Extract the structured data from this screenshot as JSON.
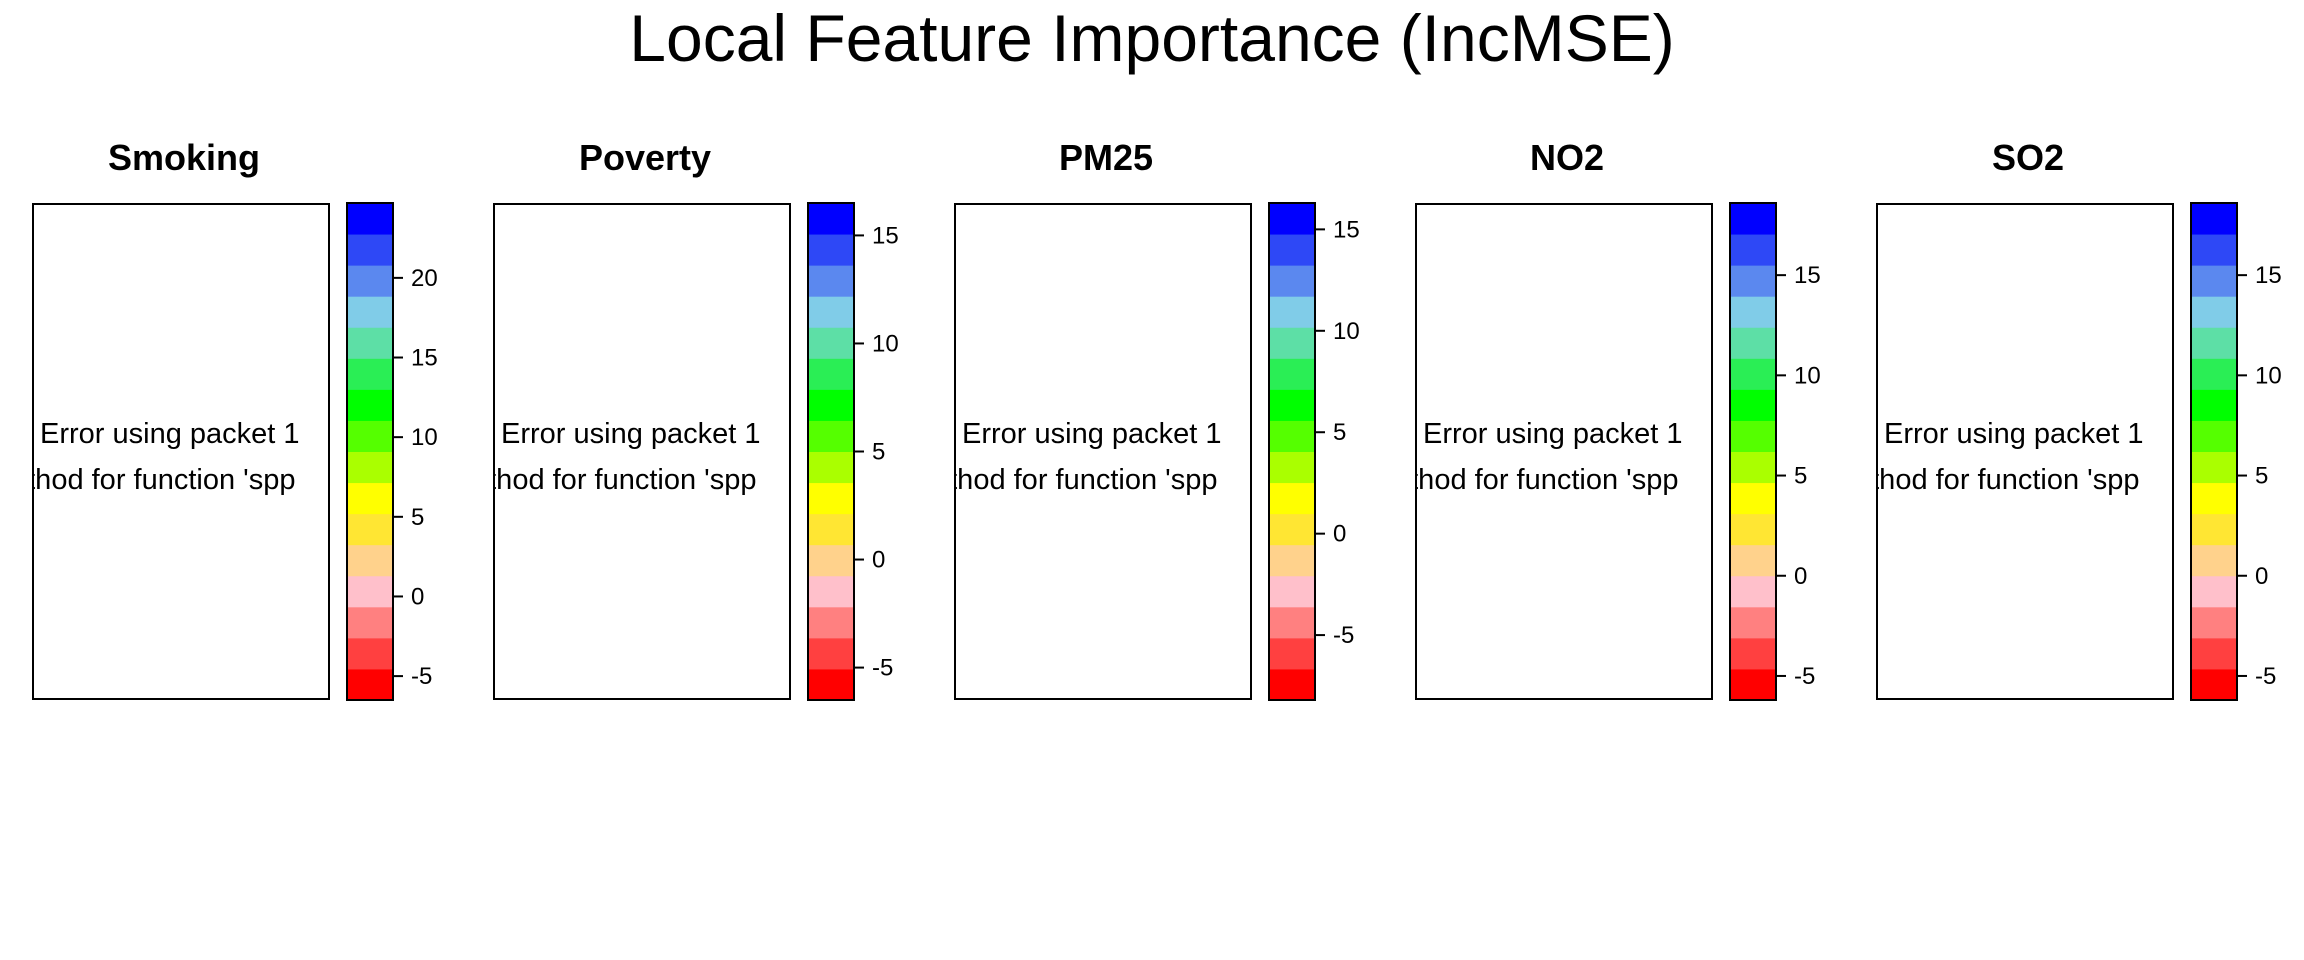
{
  "title": "Local Feature Importance (IncMSE)",
  "palette": [
    "#ff0000",
    "#ff4040",
    "#ff8080",
    "#ffc0cb",
    "#ffd28c",
    "#ffe633",
    "#ffff00",
    "#aaff00",
    "#55ff00",
    "#00ff00",
    "#2aee55",
    "#5ddfa6",
    "#80cce8",
    "#5b88ef",
    "#2e48f6",
    "#0000ff"
  ],
  "chart_data": [
    {
      "type": "heatmap",
      "title": "Smoking",
      "messages": [
        "Error using packet 1",
        "ethod for function 'spp"
      ],
      "colorkey": {
        "range": [
          -6.5,
          24.7
        ],
        "ticks": [
          -5,
          0,
          5,
          10,
          15,
          20
        ]
      }
    },
    {
      "type": "heatmap",
      "title": "Poverty",
      "messages": [
        "Error using packet 1",
        "ethod for function 'spp"
      ],
      "colorkey": {
        "range": [
          -6.5,
          16.5
        ],
        "ticks": [
          -5,
          0,
          5,
          10,
          15
        ]
      }
    },
    {
      "type": "heatmap",
      "title": "PM25",
      "messages": [
        "Error using packet 1",
        "ethod for function 'spp"
      ],
      "colorkey": {
        "range": [
          -8.2,
          16.3
        ],
        "ticks": [
          -5,
          0,
          5,
          10,
          15
        ]
      }
    },
    {
      "type": "heatmap",
      "title": "NO2",
      "messages": [
        "Error using packet 1",
        "ethod for function 'spp"
      ],
      "colorkey": {
        "range": [
          -6.2,
          18.6
        ],
        "ticks": [
          -5,
          0,
          5,
          10,
          15
        ]
      }
    },
    {
      "type": "heatmap",
      "title": "SO2",
      "messages": [
        "Error using packet 1",
        "ethod for function 'spp"
      ],
      "colorkey": {
        "range": [
          -6.2,
          18.6
        ],
        "ticks": [
          -5,
          0,
          5,
          10,
          15
        ]
      }
    }
  ]
}
